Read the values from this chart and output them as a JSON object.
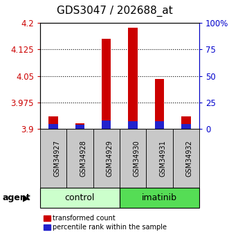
{
  "title": "GDS3047 / 202688_at",
  "samples": [
    "GSM34927",
    "GSM34928",
    "GSM34929",
    "GSM34930",
    "GSM34931",
    "GSM34932"
  ],
  "red_values": [
    3.935,
    3.917,
    4.155,
    4.185,
    4.042,
    3.935
  ],
  "blue_values": [
    0.08,
    0.07,
    0.13,
    0.12,
    0.12,
    0.08
  ],
  "ymin": 3.9,
  "ymax": 4.2,
  "yticks_left": [
    3.9,
    3.975,
    4.05,
    4.125,
    4.2
  ],
  "yticks_right": [
    0,
    25,
    50,
    75,
    100
  ],
  "groups": [
    {
      "label": "control",
      "start": 0,
      "end": 3,
      "color": "#ccffcc"
    },
    {
      "label": "imatinib",
      "start": 3,
      "end": 6,
      "color": "#55dd55"
    }
  ],
  "bar_width": 0.35,
  "red_color": "#cc0000",
  "blue_color": "#2222cc",
  "sample_box_color": "#c8c8c8",
  "agent_label": "agent",
  "legend_red": "transformed count",
  "legend_blue": "percentile rank within the sample",
  "title_fontsize": 11,
  "tick_fontsize": 8.5,
  "label_fontsize": 9,
  "axis_left_color": "#cc0000",
  "axis_right_color": "#0000cc"
}
